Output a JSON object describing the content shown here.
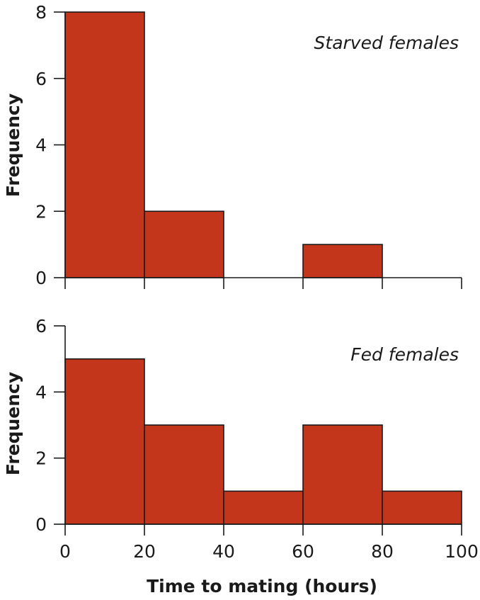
{
  "colors": {
    "bar": "#c3361b",
    "outline": "#1a1a1a"
  },
  "chart_data": [
    {
      "type": "bar",
      "histogram": true,
      "annotation": "Starved females",
      "ylabel": "Frequency",
      "xlabel": "",
      "bins": [
        [
          0,
          20
        ],
        [
          20,
          40
        ],
        [
          40,
          60
        ],
        [
          60,
          80
        ],
        [
          80,
          100
        ]
      ],
      "values": [
        8,
        2,
        0,
        1,
        0
      ],
      "xlim": [
        0,
        100
      ],
      "ylim": [
        0,
        8
      ],
      "yticks": [
        0,
        2,
        4,
        6,
        8
      ],
      "xticks": [
        0,
        20,
        40,
        60,
        80,
        100
      ],
      "xtick_labels": [
        "",
        "",
        "",
        "",
        "",
        ""
      ],
      "grid": false
    },
    {
      "type": "bar",
      "histogram": true,
      "annotation": "Fed females",
      "ylabel": "Frequency",
      "xlabel": "Time to mating (hours)",
      "bins": [
        [
          0,
          20
        ],
        [
          20,
          40
        ],
        [
          40,
          60
        ],
        [
          60,
          80
        ],
        [
          80,
          100
        ]
      ],
      "values": [
        5,
        3,
        1,
        3,
        1
      ],
      "xlim": [
        0,
        100
      ],
      "ylim": [
        0,
        6
      ],
      "yticks": [
        0,
        2,
        4,
        6
      ],
      "xticks": [
        0,
        20,
        40,
        60,
        80,
        100
      ],
      "xtick_labels": [
        "0",
        "20",
        "40",
        "60",
        "80",
        "100"
      ],
      "grid": false
    }
  ]
}
